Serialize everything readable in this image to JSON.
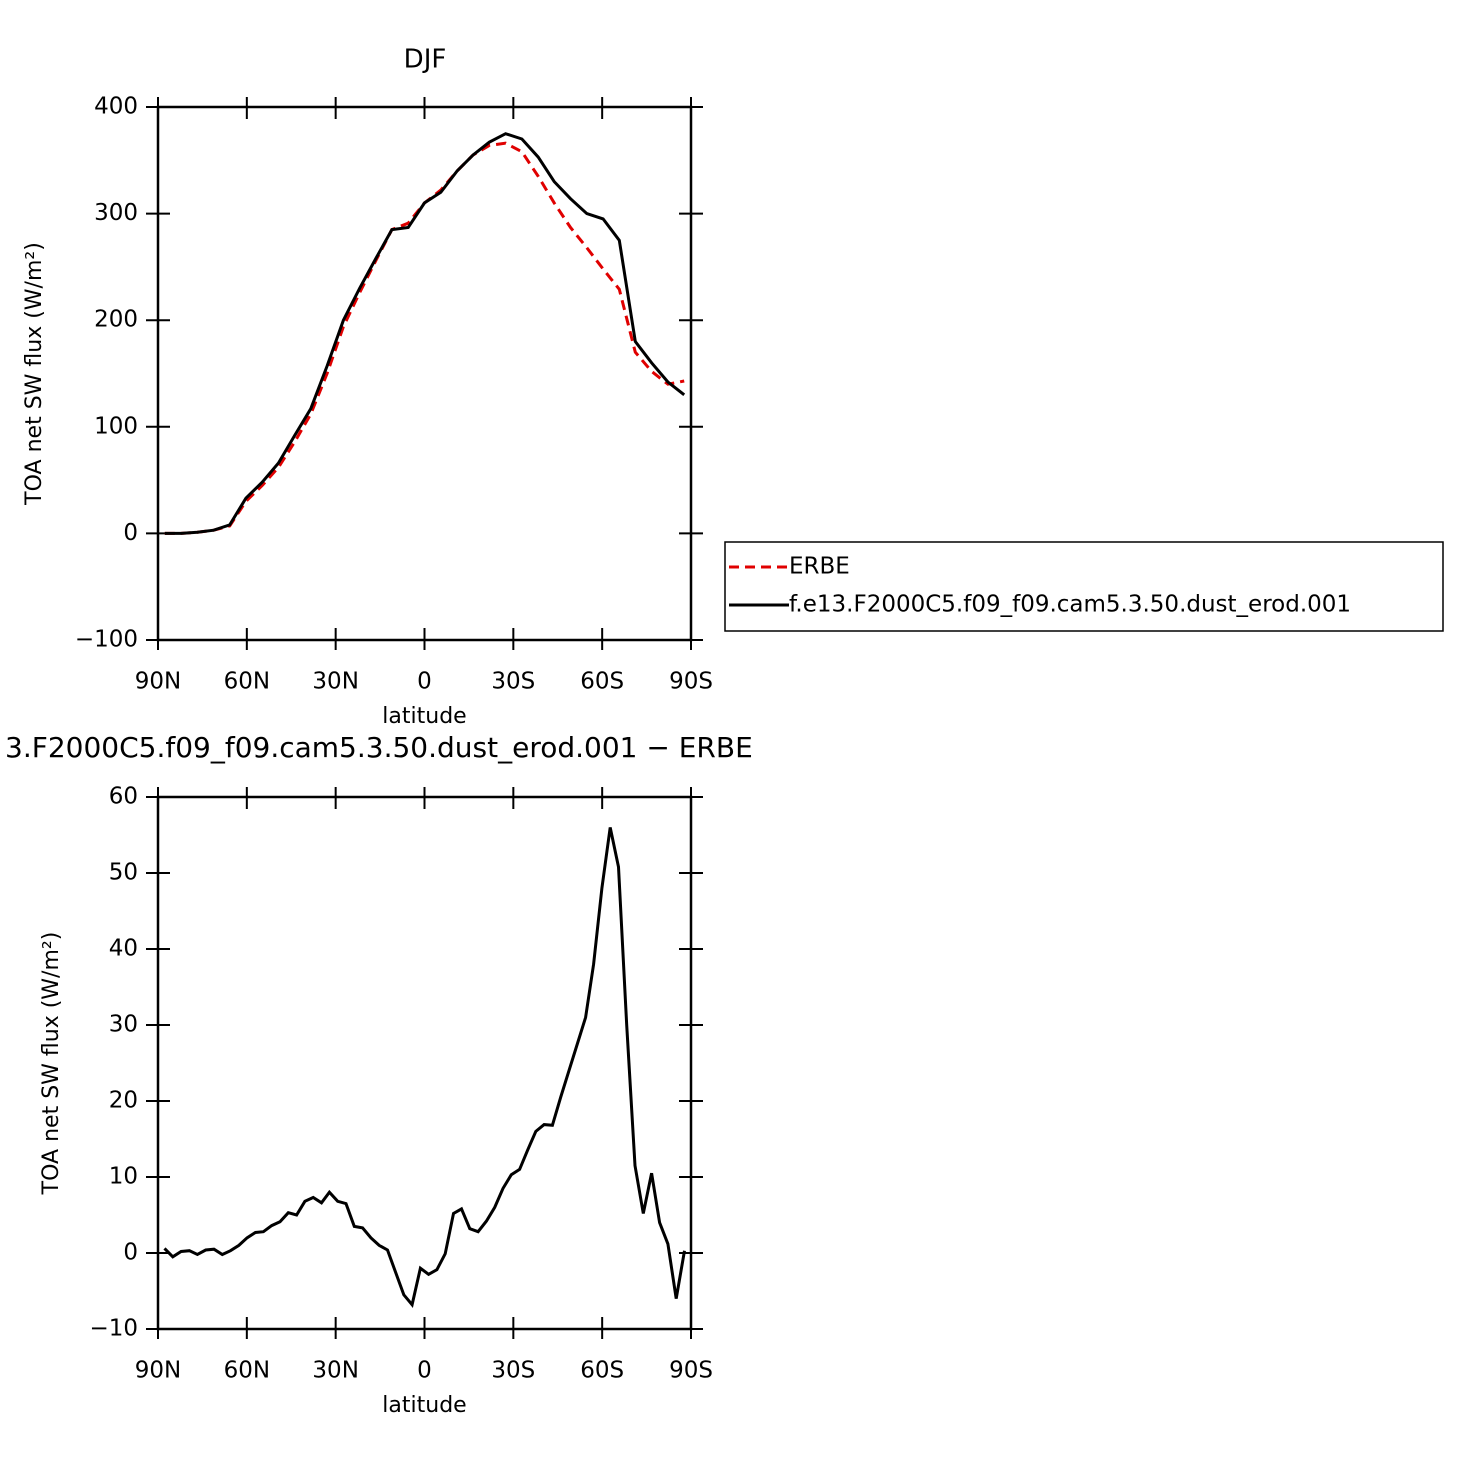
{
  "chart_data": [
    {
      "type": "line",
      "title": "DJF",
      "xlabel": "latitude",
      "ylabel": "TOA net SW flux (W/m²)",
      "x": [
        87.7,
        82.2,
        76.7,
        71.2,
        65.8,
        60.3,
        54.8,
        49.3,
        43.8,
        38.4,
        32.9,
        27.4,
        21.9,
        16.4,
        11.0,
        5.5,
        0,
        -5.5,
        -11.0,
        -16.4,
        -21.9,
        -27.4,
        -32.9,
        -38.4,
        -43.8,
        -49.3,
        -54.8,
        -60.3,
        -65.8,
        -71.2,
        -76.7,
        -82.2,
        -87.7
      ],
      "series": [
        {
          "name": "ERBE",
          "color": "#e00000",
          "linestyle": "dashed",
          "values": [
            0,
            0,
            1,
            3,
            7,
            30,
            45,
            62,
            86,
            112,
            150,
            194,
            226,
            256,
            285,
            291,
            310,
            322,
            340,
            355,
            364,
            366,
            358,
            335,
            310,
            287,
            268,
            248,
            229,
            170,
            152,
            140,
            143
          ]
        },
        {
          "name": "f.e13.F2000C5.f09_f09.cam5.3.50.dust_erod.001",
          "color": "#000000",
          "linestyle": "solid",
          "values": [
            0,
            0,
            1,
            3,
            8,
            33,
            48,
            66,
            92,
            117,
            157,
            200,
            230,
            258,
            285,
            287,
            310,
            320,
            340,
            355,
            367,
            375,
            370,
            353,
            330,
            314,
            300,
            295,
            275,
            180,
            160,
            142,
            130
          ]
        }
      ],
      "xlim": [
        90,
        -90
      ],
      "xticks": [
        {
          "value": 90,
          "label": "90N"
        },
        {
          "value": 60,
          "label": "60N"
        },
        {
          "value": 30,
          "label": "30N"
        },
        0,
        {
          "value": -30,
          "label": "30S"
        },
        {
          "value": -60,
          "label": "60S"
        },
        {
          "value": -90,
          "label": "90S"
        }
      ],
      "ylim": [
        -100,
        400
      ],
      "yticks": [
        {
          "value": -100,
          "label": "−100"
        },
        0,
        100,
        200,
        300,
        400
      ],
      "legend": "right"
    },
    {
      "type": "line",
      "title": "3.F2000C5.f09_f09.cam5.3.50.dust_erod.001 − ERBE",
      "xlabel": "latitude",
      "ylabel": "TOA net SW flux (W/m²)",
      "x": [
        87.8,
        85.0,
        82.2,
        79.4,
        76.7,
        73.9,
        71.1,
        68.3,
        65.5,
        62.7,
        59.9,
        57.1,
        54.4,
        51.6,
        48.8,
        46.0,
        43.2,
        40.4,
        37.6,
        34.8,
        32.1,
        29.3,
        26.5,
        23.7,
        20.9,
        18.1,
        15.3,
        12.5,
        9.8,
        7.0,
        4.2,
        1.4,
        -1.4,
        -4.2,
        -7.0,
        -9.8,
        -12.5,
        -15.3,
        -18.1,
        -20.9,
        -23.7,
        -26.5,
        -29.3,
        -32.1,
        -34.8,
        -37.6,
        -40.4,
        -43.2,
        -46.0,
        -48.8,
        -51.6,
        -54.4,
        -57.1,
        -59.9,
        -62.7,
        -65.5,
        -68.3,
        -71.1,
        -73.9,
        -76.7,
        -79.4,
        -82.2,
        -85.0,
        -87.8
      ],
      "series": [
        {
          "color": "#000000",
          "linestyle": "solid",
          "values": [
            0.6,
            -0.5,
            0.2,
            0.3,
            -0.2,
            0.4,
            0.5,
            -0.2,
            0.3,
            1.0,
            2.0,
            2.7,
            2.8,
            3.6,
            4.1,
            5.3,
            5.0,
            6.8,
            7.3,
            6.6,
            8.0,
            6.8,
            6.5,
            3.5,
            3.3,
            2.0,
            1.0,
            0.4,
            -2.5,
            -5.5,
            -6.8,
            -2.0,
            -2.8,
            -2.2,
            -0.1,
            5.2,
            5.8,
            3.2,
            2.8,
            4.2,
            6.0,
            8.5,
            10.3,
            11.0,
            13.5,
            16.0,
            16.9,
            16.8,
            20.5,
            24.0,
            27.5,
            31.0,
            38.0,
            48.0,
            56.0,
            50.8,
            30.0,
            11.5,
            5.2,
            10.5,
            4.0,
            1.2,
            -6.0,
            0.3
          ]
        }
      ],
      "xlim": [
        90,
        -90
      ],
      "xticks": [
        {
          "value": 90,
          "label": "90N"
        },
        {
          "value": 60,
          "label": "60N"
        },
        {
          "value": 30,
          "label": "30N"
        },
        0,
        {
          "value": -30,
          "label": "30S"
        },
        {
          "value": -60,
          "label": "60S"
        },
        {
          "value": -90,
          "label": "90S"
        }
      ],
      "ylim": [
        -10,
        60
      ],
      "yticks": [
        {
          "value": -10,
          "label": "−10"
        },
        0,
        10,
        20,
        30,
        40,
        50,
        60
      ]
    }
  ]
}
